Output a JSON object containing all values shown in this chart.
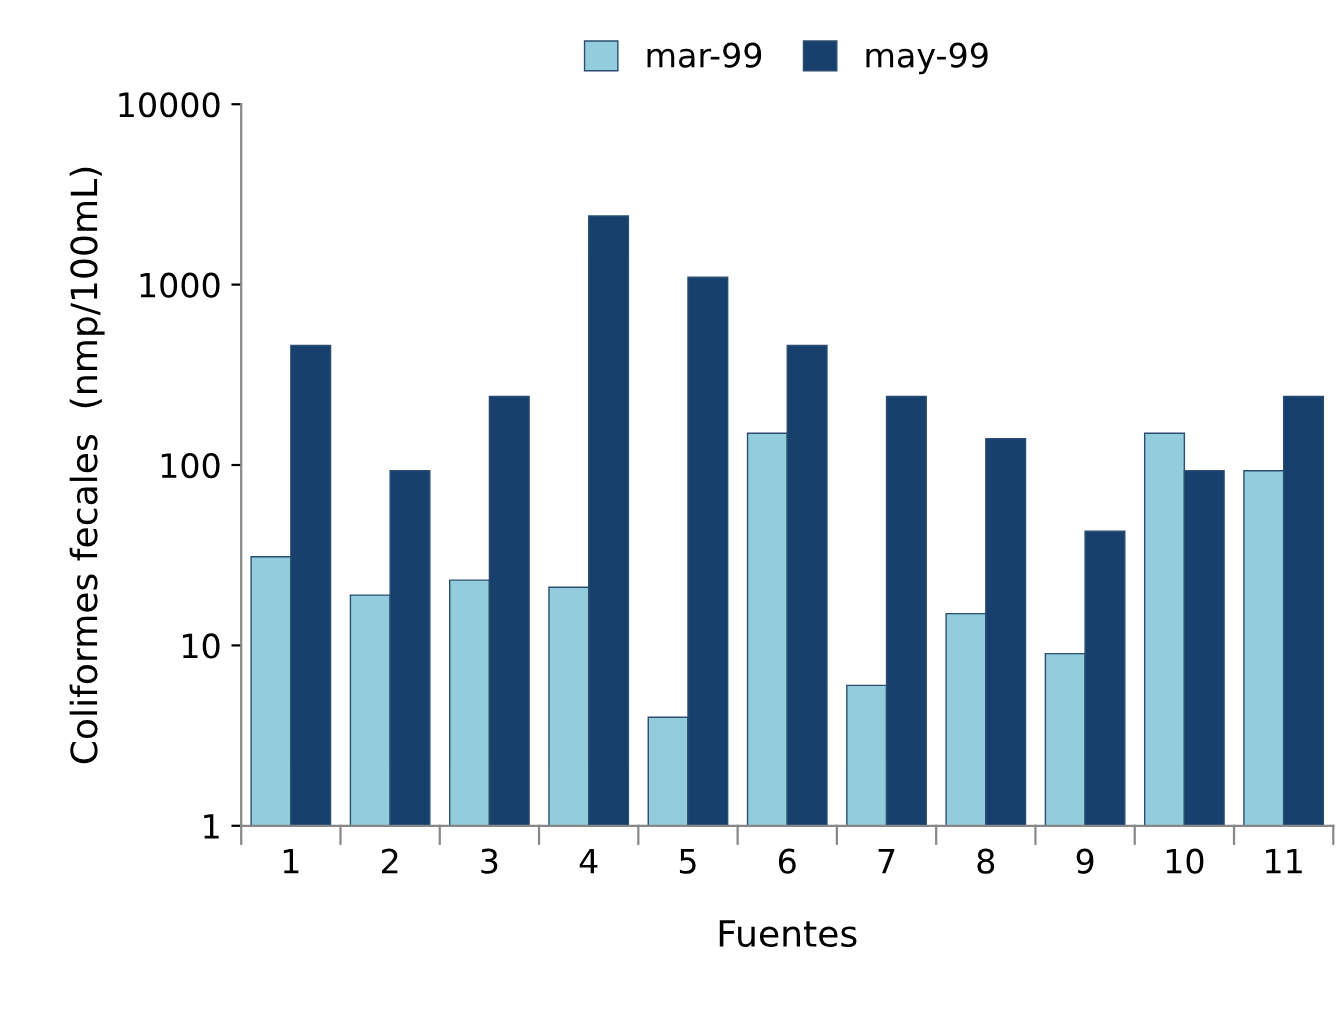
{
  "chart_data": {
    "type": "bar",
    "xlabel": "Fuentes",
    "ylabel": "Coliformes fecales  (nmp/100mL)",
    "categories": [
      "1",
      "2",
      "3",
      "4",
      "5",
      "6",
      "7",
      "8",
      "9",
      "10",
      "11"
    ],
    "series": [
      {
        "name": "mar-99",
        "color": "#93cddd",
        "values": [
          31,
          19,
          23,
          21,
          4,
          150,
          6,
          15,
          9,
          150,
          93
        ]
      },
      {
        "name": "may-99",
        "color": "#17406d",
        "values": [
          460,
          93,
          240,
          2400,
          1100,
          460,
          240,
          140,
          43,
          93,
          240
        ]
      }
    ],
    "log": true,
    "ylim": [
      1,
      10000
    ],
    "yticks": [
      1,
      10,
      100,
      1000,
      10000
    ],
    "grid": false,
    "legend": "top"
  }
}
